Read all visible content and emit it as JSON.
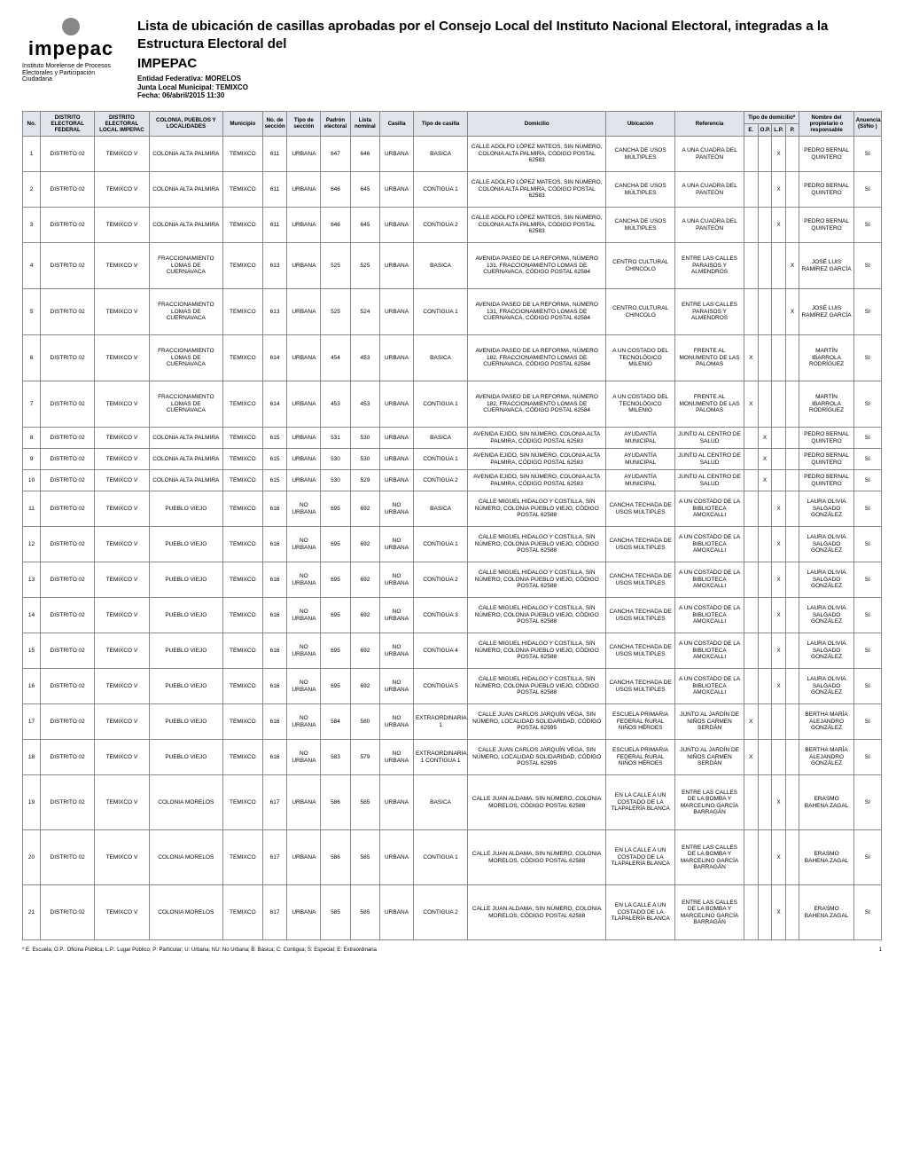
{
  "logo": {
    "name": "impepac",
    "subtitle": "Instituto Morelense\nde Procesos Electorales\ny Participación Ciudadana"
  },
  "header": {
    "title": "Lista de ubicación de casillas aprobadas por el Consejo Local del Instituto Nacional Electoral, integradas a la Estructura Electoral del",
    "title2": "IMPEPAC",
    "entidad_label": "Entidad Federativa:",
    "entidad": "MORELOS",
    "junta_label": "Junta Local Municipal:",
    "junta": "TEMIXCO",
    "fecha_label": "Fecha:",
    "fecha": "06/abril/2015 11:30"
  },
  "table": {
    "headers": {
      "no": "No.",
      "dist_fed": "DISTRITO ELECTORAL FEDERAL",
      "dist_loc": "DISTRITO ELECTORAL LOCAL IMPEPAC",
      "colonia": "COLONIA, PUEBLOS Y LOCALIDADES",
      "municipio": "Municipio",
      "no_seccion": "No. de sección",
      "tipo_seccion": "Tipo de sección",
      "padron": "Padrón electoral",
      "lista": "Lista nominal",
      "casilla": "Casilla",
      "tipo_casilla": "Tipo de casilla",
      "domicilio": "Domicilio",
      "ubicacion": "Ubicación",
      "referencia": "Referencia",
      "tipo_dom_group": "Tipo de domicilio*",
      "e": "E.",
      "op": "O.P.",
      "lp": "L.P.",
      "p": "P.",
      "nombre": "Nombre del propietario o responsable",
      "anuencia": "Anuencia (Si/No )"
    },
    "rows": [
      {
        "no": "1",
        "df": "DISTRITO 02",
        "dl": "TEMIXCO V",
        "col": "COLONIA ALTA PALMIRA",
        "mun": "TEMIXCO",
        "sec": "611",
        "ts": "URBANA",
        "pad": "647",
        "lis": "646",
        "cas": "URBANA",
        "tc": "BASICA",
        "dom": "CALLE ADOLFO LÓPEZ MATEOS, SIN NÚMERO, COLONIA ALTA PALMIRA, CÓDIGO POSTAL 62583",
        "ubi": "CANCHA DE USOS MÚLTIPLES",
        "ref": "A UNA CUADRA DEL PANTEÓN",
        "e": "",
        "op": "",
        "lp": "X",
        "p": "",
        "nom": "PEDRO BERNAL QUINTERO",
        "anu": "SI",
        "h": "med"
      },
      {
        "no": "2",
        "df": "DISTRITO 02",
        "dl": "TEMIXCO V",
        "col": "COLONIA ALTA PALMIRA",
        "mun": "TEMIXCO",
        "sec": "611",
        "ts": "URBANA",
        "pad": "646",
        "lis": "645",
        "cas": "URBANA",
        "tc": "CONTIGUA 1",
        "dom": "CALLE ADOLFO LÓPEZ MATEOS, SIN NÚMERO, COLONIA ALTA PALMIRA, CÓDIGO POSTAL 62583",
        "ubi": "CANCHA DE USOS MÚLTIPLES",
        "ref": "A UNA CUADRA DEL PANTEÓN",
        "e": "",
        "op": "",
        "lp": "X",
        "p": "",
        "nom": "PEDRO BERNAL QUINTERO",
        "anu": "SI",
        "h": "med"
      },
      {
        "no": "3",
        "df": "DISTRITO 02",
        "dl": "TEMIXCO V",
        "col": "COLONIA ALTA PALMIRA",
        "mun": "TEMIXCO",
        "sec": "611",
        "ts": "URBANA",
        "pad": "646",
        "lis": "645",
        "cas": "URBANA",
        "tc": "CONTIGUA 2",
        "dom": "CALLE ADOLFO LÓPEZ MATEOS, SIN NÚMERO, COLONIA ALTA PALMIRA, CÓDIGO POSTAL 62583",
        "ubi": "CANCHA DE USOS MÚLTIPLES",
        "ref": "A UNA CUADRA DEL PANTEÓN",
        "e": "",
        "op": "",
        "lp": "X",
        "p": "",
        "nom": "PEDRO BERNAL QUINTERO",
        "anu": "SI",
        "h": "med"
      },
      {
        "no": "4",
        "df": "DISTRITO 02",
        "dl": "TEMIXCO V",
        "col": "FRACCIONAMIENTO LOMAS DE CUERNAVACA",
        "mun": "TEMIXCO",
        "sec": "613",
        "ts": "URBANA",
        "pad": "525",
        "lis": "525",
        "cas": "URBANA",
        "tc": "BASICA",
        "dom": "AVENIDA PASEO DE LA REFORMA, NÚMERO 131, FRACCIONAMIENTO LOMAS DE CUERNAVACA, CÓDIGO POSTAL 62584",
        "ubi": "CENTRO CULTURAL CHINCOLO",
        "ref": "ENTRE LAS CALLES PARAISOS Y ALMENDROS",
        "e": "",
        "op": "",
        "lp": "",
        "p": "X",
        "nom": "JOSÉ LUIS RAMÍREZ GARCÍA",
        "anu": "SI",
        "h": "tall"
      },
      {
        "no": "5",
        "df": "DISTRITO 02",
        "dl": "TEMIXCO V",
        "col": "FRACCIONAMIENTO LOMAS DE CUERNAVACA",
        "mun": "TEMIXCO",
        "sec": "613",
        "ts": "URBANA",
        "pad": "525",
        "lis": "524",
        "cas": "URBANA",
        "tc": "CONTIGUA 1",
        "dom": "AVENIDA PASEO DE LA REFORMA, NÚMERO 131, FRACCIONAMIENTO LOMAS DE CUERNAVACA, CÓDIGO POSTAL 62584",
        "ubi": "CENTRO CULTURAL CHINCOLO",
        "ref": "ENTRE LAS CALLES PARAISOS Y ALMENDROS",
        "e": "",
        "op": "",
        "lp": "",
        "p": "X",
        "nom": "JOSÉ LUIS RAMÍREZ GARCÍA",
        "anu": "SI",
        "h": "tall"
      },
      {
        "no": "6",
        "df": "DISTRITO 02",
        "dl": "TEMIXCO V",
        "col": "FRACCIONAMIENTO LOMAS DE CUERNAVACA",
        "mun": "TEMIXCO",
        "sec": "614",
        "ts": "URBANA",
        "pad": "454",
        "lis": "453",
        "cas": "URBANA",
        "tc": "BASICA",
        "dom": "AVENIDA PASEO DE LA REFORMA, NÚMERO 182, FRACCIONAMIENTO LOMAS DE CUERNAVACA, CÓDIGO POSTAL 62584",
        "ubi": "A UN COSTADO DEL TECNOLÓGICO MILENIO",
        "ref": "FRENTE AL MONUMENTO DE LAS PALOMAS",
        "e": "X",
        "op": "",
        "lp": "",
        "p": "",
        "nom": "MARTÍN IBARROLA RODRÍGUEZ",
        "anu": "SI",
        "h": "tall"
      },
      {
        "no": "7",
        "df": "DISTRITO 02",
        "dl": "TEMIXCO V",
        "col": "FRACCIONAMIENTO LOMAS DE CUERNAVACA",
        "mun": "TEMIXCO",
        "sec": "614",
        "ts": "URBANA",
        "pad": "453",
        "lis": "453",
        "cas": "URBANA",
        "tc": "CONTIGUA 1",
        "dom": "AVENIDA PASEO DE LA REFORMA, NÚMERO 182, FRACCIONAMIENTO LOMAS DE CUERNAVACA, CÓDIGO POSTAL 62584",
        "ubi": "A UN COSTADO DEL TECNOLÓGICO MILENIO",
        "ref": "FRENTE AL MONUMENTO DE LAS PALOMAS",
        "e": "X",
        "op": "",
        "lp": "",
        "p": "",
        "nom": "MARTÍN IBARROLA RODRÍGUEZ",
        "anu": "SI",
        "h": "tall"
      },
      {
        "no": "8",
        "df": "DISTRITO 02",
        "dl": "TEMIXCO V",
        "col": "COLONIA ALTA PALMIRA",
        "mun": "TEMIXCO",
        "sec": "615",
        "ts": "URBANA",
        "pad": "531",
        "lis": "530",
        "cas": "URBANA",
        "tc": "BASICA",
        "dom": "AVENIDA EJIDO, SIN NÚMERO, COLONIA ALTA PALMIRA, CÓDIGO POSTAL 62583",
        "ubi": "AYUDANTÍA MUNICIPAL",
        "ref": "JUNTO AL CENTRO DE SALUD",
        "e": "",
        "op": "X",
        "lp": "",
        "p": "",
        "nom": "PEDRO BERNAL QUINTERO",
        "anu": "SI",
        "h": "short"
      },
      {
        "no": "9",
        "df": "DISTRITO 02",
        "dl": "TEMIXCO V",
        "col": "COLONIA ALTA PALMIRA",
        "mun": "TEMIXCO",
        "sec": "615",
        "ts": "URBANA",
        "pad": "530",
        "lis": "530",
        "cas": "URBANA",
        "tc": "CONTIGUA 1",
        "dom": "AVENIDA EJIDO, SIN NÚMERO, COLONIA ALTA PALMIRA, CÓDIGO POSTAL 62583",
        "ubi": "AYUDANTÍA MUNICIPAL",
        "ref": "JUNTO AL CENTRO DE SALUD",
        "e": "",
        "op": "X",
        "lp": "",
        "p": "",
        "nom": "PEDRO BERNAL QUINTERO",
        "anu": "SI",
        "h": "short"
      },
      {
        "no": "10",
        "df": "DISTRITO 02",
        "dl": "TEMIXCO V",
        "col": "COLONIA ALTA PALMIRA",
        "mun": "TEMIXCO",
        "sec": "615",
        "ts": "URBANA",
        "pad": "530",
        "lis": "529",
        "cas": "URBANA",
        "tc": "CONTIGUA 2",
        "dom": "AVENIDA EJIDO, SIN NÚMERO, COLONIA ALTA PALMIRA, CÓDIGO POSTAL 62583",
        "ubi": "AYUDANTÍA MUNICIPAL",
        "ref": "JUNTO AL CENTRO DE SALUD",
        "e": "",
        "op": "X",
        "lp": "",
        "p": "",
        "nom": "PEDRO BERNAL QUINTERO",
        "anu": "SI",
        "h": "short"
      },
      {
        "no": "11",
        "df": "DISTRITO 02",
        "dl": "TEMIXCO V",
        "col": "PUEBLO VIEJO",
        "mun": "TEMIXCO",
        "sec": "616",
        "ts": "NO URBANA",
        "pad": "695",
        "lis": "692",
        "cas": "NO URBANA",
        "tc": "BASICA",
        "dom": "CALLE MIGUEL HIDALGO Y COSTILLA, SIN NÚMERO, COLONIA PUEBLO VIEJO, CÓDIGO POSTAL 62588",
        "ubi": "CANCHA TECHADA DE USOS MÚLTIPLES",
        "ref": "A UN COSTADO DE LA BIBLIOTECA AMOXCALLI",
        "e": "",
        "op": "",
        "lp": "X",
        "p": "",
        "nom": "LAURA OLIVIA SALGADO GONZÁLEZ",
        "anu": "SI",
        "h": "med"
      },
      {
        "no": "12",
        "df": "DISTRITO 02",
        "dl": "TEMIXCO V",
        "col": "PUEBLO VIEJO",
        "mun": "TEMIXCO",
        "sec": "616",
        "ts": "NO URBANA",
        "pad": "695",
        "lis": "692",
        "cas": "NO URBANA",
        "tc": "CONTIGUA 1",
        "dom": "CALLE MIGUEL HIDALGO Y COSTILLA, SIN NÚMERO, COLONIA PUEBLO VIEJO, CÓDIGO POSTAL 62588",
        "ubi": "CANCHA TECHADA DE USOS MÚLTIPLES",
        "ref": "A UN COSTADO DE LA BIBLIOTECA AMOXCALLI",
        "e": "",
        "op": "",
        "lp": "X",
        "p": "",
        "nom": "LAURA OLIVIA SALGADO GONZÁLEZ",
        "anu": "SI",
        "h": "med"
      },
      {
        "no": "13",
        "df": "DISTRITO 02",
        "dl": "TEMIXCO V",
        "col": "PUEBLO VIEJO",
        "mun": "TEMIXCO",
        "sec": "616",
        "ts": "NO URBANA",
        "pad": "695",
        "lis": "692",
        "cas": "NO URBANA",
        "tc": "CONTIGUA 2",
        "dom": "CALLE MIGUEL HIDALGO Y COSTILLA, SIN NÚMERO, COLONIA PUEBLO VIEJO, CÓDIGO POSTAL 62588",
        "ubi": "CANCHA TECHADA DE USOS MÚLTIPLES",
        "ref": "A UN COSTADO DE LA BIBLIOTECA AMOXCALLI",
        "e": "",
        "op": "",
        "lp": "X",
        "p": "",
        "nom": "LAURA OLIVIA SALGADO GONZÁLEZ",
        "anu": "SI",
        "h": "med"
      },
      {
        "no": "14",
        "df": "DISTRITO 02",
        "dl": "TEMIXCO V",
        "col": "PUEBLO VIEJO",
        "mun": "TEMIXCO",
        "sec": "616",
        "ts": "NO URBANA",
        "pad": "695",
        "lis": "692",
        "cas": "NO URBANA",
        "tc": "CONTIGUA 3",
        "dom": "CALLE MIGUEL HIDALGO Y COSTILLA, SIN NÚMERO, COLONIA PUEBLO VIEJO, CÓDIGO POSTAL 62588",
        "ubi": "CANCHA TECHADA DE USOS MÚLTIPLES",
        "ref": "A UN COSTADO DE LA BIBLIOTECA AMOXCALLI",
        "e": "",
        "op": "",
        "lp": "X",
        "p": "",
        "nom": "LAURA OLIVIA SALGADO GONZÁLEZ",
        "anu": "SI",
        "h": "med"
      },
      {
        "no": "15",
        "df": "DISTRITO 02",
        "dl": "TEMIXCO V",
        "col": "PUEBLO VIEJO",
        "mun": "TEMIXCO",
        "sec": "616",
        "ts": "NO URBANA",
        "pad": "695",
        "lis": "692",
        "cas": "NO URBANA",
        "tc": "CONTIGUA 4",
        "dom": "CALLE MIGUEL HIDALGO Y COSTILLA, SIN NÚMERO, COLONIA PUEBLO VIEJO, CÓDIGO POSTAL 62588",
        "ubi": "CANCHA TECHADA DE USOS MÚLTIPLES",
        "ref": "A UN COSTADO DE LA BIBLIOTECA AMOXCALLI",
        "e": "",
        "op": "",
        "lp": "X",
        "p": "",
        "nom": "LAURA OLIVIA SALGADO GONZÁLEZ",
        "anu": "SI",
        "h": "med"
      },
      {
        "no": "16",
        "df": "DISTRITO 02",
        "dl": "TEMIXCO V",
        "col": "PUEBLO VIEJO",
        "mun": "TEMIXCO",
        "sec": "616",
        "ts": "NO URBANA",
        "pad": "695",
        "lis": "692",
        "cas": "NO URBANA",
        "tc": "CONTIGUA 5",
        "dom": "CALLE MIGUEL HIDALGO Y COSTILLA, SIN NÚMERO, COLONIA PUEBLO VIEJO, CÓDIGO POSTAL 62588",
        "ubi": "CANCHA TECHADA DE USOS MÚLTIPLES",
        "ref": "A UN COSTADO DE LA BIBLIOTECA AMOXCALLI",
        "e": "",
        "op": "",
        "lp": "X",
        "p": "",
        "nom": "LAURA OLIVIA SALGADO GONZÁLEZ",
        "anu": "SI",
        "h": "med"
      },
      {
        "no": "17",
        "df": "DISTRITO 02",
        "dl": "TEMIXCO V",
        "col": "PUEBLO VIEJO",
        "mun": "TEMIXCO",
        "sec": "616",
        "ts": "NO URBANA",
        "pad": "584",
        "lis": "580",
        "cas": "NO URBANA",
        "tc": "EXTRAORDINARIA 1",
        "dom": "CALLE JUAN CARLOS JARQUÍN VEGA, SIN NÚMERO, LOCALIDAD SOLIDARIDAD, CÓDIGO POSTAL 62595",
        "ubi": "ESCUELA PRIMARIA FEDERAL RURAL NIÑOS HÉROES",
        "ref": "JUNTO AL JARDÍN DE NIÑOS CARMEN SERDÁN",
        "e": "X",
        "op": "",
        "lp": "",
        "p": "",
        "nom": "BERTHA MARÍA ALEJANDRO GONZÁLEZ",
        "anu": "SI",
        "h": "med"
      },
      {
        "no": "18",
        "df": "DISTRITO 02",
        "dl": "TEMIXCO V",
        "col": "PUEBLO VIEJO",
        "mun": "TEMIXCO",
        "sec": "616",
        "ts": "NO URBANA",
        "pad": "583",
        "lis": "579",
        "cas": "NO URBANA",
        "tc": "EXTRAORDINARIA 1 CONTIGUA 1",
        "dom": "CALLE JUAN CARLOS JARQUÍN VEGA, SIN NÚMERO, LOCALIDAD SOLIDARIDAD, CÓDIGO POSTAL 62595",
        "ubi": "ESCUELA PRIMARIA FEDERAL RURAL NIÑOS HÉROES",
        "ref": "JUNTO AL JARDÍN DE NIÑOS CARMEN SERDÁN",
        "e": "X",
        "op": "",
        "lp": "",
        "p": "",
        "nom": "BERTHA MARÍA ALEJANDRO GONZÁLEZ",
        "anu": "SI",
        "h": "med"
      },
      {
        "no": "19",
        "df": "DISTRITO 02",
        "dl": "TEMIXCO V",
        "col": "COLONIA MORELOS",
        "mun": "TEMIXCO",
        "sec": "617",
        "ts": "URBANA",
        "pad": "586",
        "lis": "585",
        "cas": "URBANA",
        "tc": "BASICA",
        "dom": "CALLE JUAN ALDAMA, SIN NÚMERO, COLONIA MORELOS, CÓDIGO POSTAL 62588",
        "ubi": "EN LA CALLE A UN COSTADO DE LA TLAPALERÍA BLANCA",
        "ref": "ENTRE LAS CALLES DE LA BOMBA Y MARCELINO GARCÍA BARRAGÁN",
        "e": "",
        "op": "",
        "lp": "X",
        "p": "",
        "nom": "ERASMO BAHENA ZAGAL",
        "anu": "SI",
        "h": "big"
      },
      {
        "no": "20",
        "df": "DISTRITO 02",
        "dl": "TEMIXCO V",
        "col": "COLONIA MORELOS",
        "mun": "TEMIXCO",
        "sec": "617",
        "ts": "URBANA",
        "pad": "586",
        "lis": "585",
        "cas": "URBANA",
        "tc": "CONTIGUA 1",
        "dom": "CALLE JUAN ALDAMA, SIN NÚMERO, COLONIA MORELOS, CÓDIGO POSTAL 62588",
        "ubi": "EN LA CALLE A UN COSTADO DE LA TLAPALERÍA BLANCA",
        "ref": "ENTRE LAS CALLES DE LA BOMBA Y MARCELINO GARCÍA BARRAGÁN",
        "e": "",
        "op": "",
        "lp": "X",
        "p": "",
        "nom": "ERASMO BAHENA ZAGAL",
        "anu": "SI",
        "h": "big"
      },
      {
        "no": "21",
        "df": "DISTRITO 02",
        "dl": "TEMIXCO V",
        "col": "COLONIA MORELOS",
        "mun": "TEMIXCO",
        "sec": "617",
        "ts": "URBANA",
        "pad": "585",
        "lis": "585",
        "cas": "URBANA",
        "tc": "CONTIGUA 2",
        "dom": "CALLE JUAN ALDAMA, SIN NÚMERO, COLONIA MORELOS, CÓDIGO POSTAL 62588",
        "ubi": "EN LA CALLE A UN COSTADO DE LA TLAPALERÍA BLANCA",
        "ref": "ENTRE LAS CALLES DE LA BOMBA Y MARCELINO GARCÍA BARRAGÁN",
        "e": "",
        "op": "",
        "lp": "X",
        "p": "",
        "nom": "ERASMO BAHENA ZAGAL",
        "anu": "SI",
        "h": "big"
      }
    ]
  },
  "footer": {
    "note": "* E: Escuela; O.P.: Oficina Pública; L.P.: Lugar Público; P: Particular; U: Urbana; NU: No Urbana; B: Básica; C: Contigua; S: Especial; E: Extraordinaria",
    "page": "1"
  }
}
